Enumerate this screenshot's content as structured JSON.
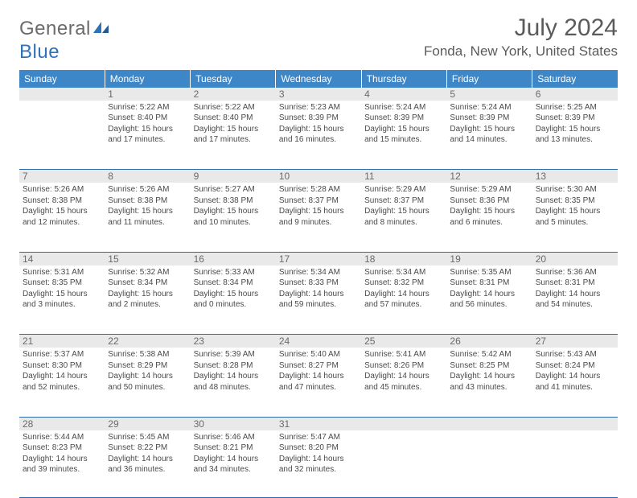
{
  "logo": {
    "general": "General",
    "blue": "Blue"
  },
  "title": "July 2024",
  "location": "Fonda, New York, United States",
  "colors": {
    "header_bg": "#3d87c9",
    "header_text": "#ffffff",
    "daynum_bg": "#e9e9e9",
    "border": "#2f6aa8",
    "text": "#4a4a4a",
    "title_text": "#5a5a5a",
    "logo_gray": "#6b6b6b",
    "logo_blue": "#2f72b8"
  },
  "dow": [
    "Sunday",
    "Monday",
    "Tuesday",
    "Wednesday",
    "Thursday",
    "Friday",
    "Saturday"
  ],
  "weeks": [
    [
      {
        "num": "",
        "lines": []
      },
      {
        "num": "1",
        "lines": [
          "Sunrise: 5:22 AM",
          "Sunset: 8:40 PM",
          "Daylight: 15 hours and 17 minutes."
        ]
      },
      {
        "num": "2",
        "lines": [
          "Sunrise: 5:22 AM",
          "Sunset: 8:40 PM",
          "Daylight: 15 hours and 17 minutes."
        ]
      },
      {
        "num": "3",
        "lines": [
          "Sunrise: 5:23 AM",
          "Sunset: 8:39 PM",
          "Daylight: 15 hours and 16 minutes."
        ]
      },
      {
        "num": "4",
        "lines": [
          "Sunrise: 5:24 AM",
          "Sunset: 8:39 PM",
          "Daylight: 15 hours and 15 minutes."
        ]
      },
      {
        "num": "5",
        "lines": [
          "Sunrise: 5:24 AM",
          "Sunset: 8:39 PM",
          "Daylight: 15 hours and 14 minutes."
        ]
      },
      {
        "num": "6",
        "lines": [
          "Sunrise: 5:25 AM",
          "Sunset: 8:39 PM",
          "Daylight: 15 hours and 13 minutes."
        ]
      }
    ],
    [
      {
        "num": "7",
        "lines": [
          "Sunrise: 5:26 AM",
          "Sunset: 8:38 PM",
          "Daylight: 15 hours and 12 minutes."
        ]
      },
      {
        "num": "8",
        "lines": [
          "Sunrise: 5:26 AM",
          "Sunset: 8:38 PM",
          "Daylight: 15 hours and 11 minutes."
        ]
      },
      {
        "num": "9",
        "lines": [
          "Sunrise: 5:27 AM",
          "Sunset: 8:38 PM",
          "Daylight: 15 hours and 10 minutes."
        ]
      },
      {
        "num": "10",
        "lines": [
          "Sunrise: 5:28 AM",
          "Sunset: 8:37 PM",
          "Daylight: 15 hours and 9 minutes."
        ]
      },
      {
        "num": "11",
        "lines": [
          "Sunrise: 5:29 AM",
          "Sunset: 8:37 PM",
          "Daylight: 15 hours and 8 minutes."
        ]
      },
      {
        "num": "12",
        "lines": [
          "Sunrise: 5:29 AM",
          "Sunset: 8:36 PM",
          "Daylight: 15 hours and 6 minutes."
        ]
      },
      {
        "num": "13",
        "lines": [
          "Sunrise: 5:30 AM",
          "Sunset: 8:35 PM",
          "Daylight: 15 hours and 5 minutes."
        ]
      }
    ],
    [
      {
        "num": "14",
        "lines": [
          "Sunrise: 5:31 AM",
          "Sunset: 8:35 PM",
          "Daylight: 15 hours and 3 minutes."
        ]
      },
      {
        "num": "15",
        "lines": [
          "Sunrise: 5:32 AM",
          "Sunset: 8:34 PM",
          "Daylight: 15 hours and 2 minutes."
        ]
      },
      {
        "num": "16",
        "lines": [
          "Sunrise: 5:33 AM",
          "Sunset: 8:34 PM",
          "Daylight: 15 hours and 0 minutes."
        ]
      },
      {
        "num": "17",
        "lines": [
          "Sunrise: 5:34 AM",
          "Sunset: 8:33 PM",
          "Daylight: 14 hours and 59 minutes."
        ]
      },
      {
        "num": "18",
        "lines": [
          "Sunrise: 5:34 AM",
          "Sunset: 8:32 PM",
          "Daylight: 14 hours and 57 minutes."
        ]
      },
      {
        "num": "19",
        "lines": [
          "Sunrise: 5:35 AM",
          "Sunset: 8:31 PM",
          "Daylight: 14 hours and 56 minutes."
        ]
      },
      {
        "num": "20",
        "lines": [
          "Sunrise: 5:36 AM",
          "Sunset: 8:31 PM",
          "Daylight: 14 hours and 54 minutes."
        ]
      }
    ],
    [
      {
        "num": "21",
        "lines": [
          "Sunrise: 5:37 AM",
          "Sunset: 8:30 PM",
          "Daylight: 14 hours and 52 minutes."
        ]
      },
      {
        "num": "22",
        "lines": [
          "Sunrise: 5:38 AM",
          "Sunset: 8:29 PM",
          "Daylight: 14 hours and 50 minutes."
        ]
      },
      {
        "num": "23",
        "lines": [
          "Sunrise: 5:39 AM",
          "Sunset: 8:28 PM",
          "Daylight: 14 hours and 48 minutes."
        ]
      },
      {
        "num": "24",
        "lines": [
          "Sunrise: 5:40 AM",
          "Sunset: 8:27 PM",
          "Daylight: 14 hours and 47 minutes."
        ]
      },
      {
        "num": "25",
        "lines": [
          "Sunrise: 5:41 AM",
          "Sunset: 8:26 PM",
          "Daylight: 14 hours and 45 minutes."
        ]
      },
      {
        "num": "26",
        "lines": [
          "Sunrise: 5:42 AM",
          "Sunset: 8:25 PM",
          "Daylight: 14 hours and 43 minutes."
        ]
      },
      {
        "num": "27",
        "lines": [
          "Sunrise: 5:43 AM",
          "Sunset: 8:24 PM",
          "Daylight: 14 hours and 41 minutes."
        ]
      }
    ],
    [
      {
        "num": "28",
        "lines": [
          "Sunrise: 5:44 AM",
          "Sunset: 8:23 PM",
          "Daylight: 14 hours and 39 minutes."
        ]
      },
      {
        "num": "29",
        "lines": [
          "Sunrise: 5:45 AM",
          "Sunset: 8:22 PM",
          "Daylight: 14 hours and 36 minutes."
        ]
      },
      {
        "num": "30",
        "lines": [
          "Sunrise: 5:46 AM",
          "Sunset: 8:21 PM",
          "Daylight: 14 hours and 34 minutes."
        ]
      },
      {
        "num": "31",
        "lines": [
          "Sunrise: 5:47 AM",
          "Sunset: 8:20 PM",
          "Daylight: 14 hours and 32 minutes."
        ]
      },
      {
        "num": "",
        "lines": []
      },
      {
        "num": "",
        "lines": []
      },
      {
        "num": "",
        "lines": []
      }
    ]
  ]
}
